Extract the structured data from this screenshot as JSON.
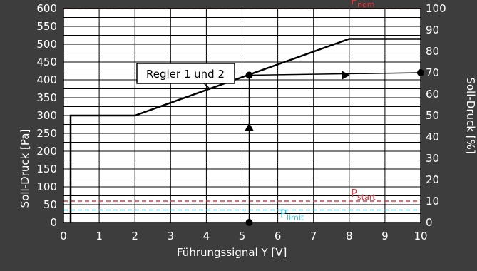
{
  "chart_data": {
    "type": "line",
    "title": "",
    "xlabel": "Führungssignal Y [V]",
    "ylabel": "Soll-Druck  [Pa]",
    "ylabel_right": "Soll-Druck [%]",
    "xlim": [
      0,
      10
    ],
    "ylim": [
      0,
      600
    ],
    "ylim_right": [
      0,
      100
    ],
    "x_ticks": [
      0,
      1,
      2,
      3,
      4,
      5,
      6,
      7,
      8,
      9,
      10
    ],
    "y_ticks": [
      0,
      25,
      50,
      75,
      100,
      125,
      150,
      175,
      200,
      225,
      250,
      275,
      300,
      325,
      350,
      375,
      400,
      425,
      450,
      475,
      500,
      525,
      550,
      575,
      600
    ],
    "y_tick_labels_shown": [
      0,
      50,
      100,
      150,
      200,
      250,
      300,
      350,
      400,
      450,
      500,
      550,
      600
    ],
    "y_right_ticks": [
      0,
      10,
      20,
      30,
      40,
      50,
      60,
      70,
      80,
      90,
      100
    ],
    "grid": true,
    "series": [
      {
        "name": "Regler 1 und 2",
        "x": [
          0.2,
          0.2,
          2,
          8,
          10
        ],
        "y": [
          0,
          300,
          300,
          515,
          515
        ]
      }
    ],
    "reference_lines": [
      {
        "label": "P",
        "sub": "nom",
        "y": 600,
        "color": "#e8303a"
      },
      {
        "label": "P",
        "sub": "start",
        "y": 60,
        "color": "#e8303a"
      },
      {
        "label": "P",
        "sub": "limit",
        "y": 35,
        "color": "#3fc0d8"
      }
    ],
    "example": {
      "x": 5.2,
      "y": 413,
      "y_percent": 70,
      "mid_arrow_x": 7.9,
      "up_arrow_y": 270
    },
    "annotation": {
      "text": "Regler 1 und 2",
      "points_to_x": 4.1
    },
    "colors": {
      "background": "#3d3d3d",
      "plot": "#ffffff",
      "grid": "#000000",
      "series": "#000000"
    }
  }
}
